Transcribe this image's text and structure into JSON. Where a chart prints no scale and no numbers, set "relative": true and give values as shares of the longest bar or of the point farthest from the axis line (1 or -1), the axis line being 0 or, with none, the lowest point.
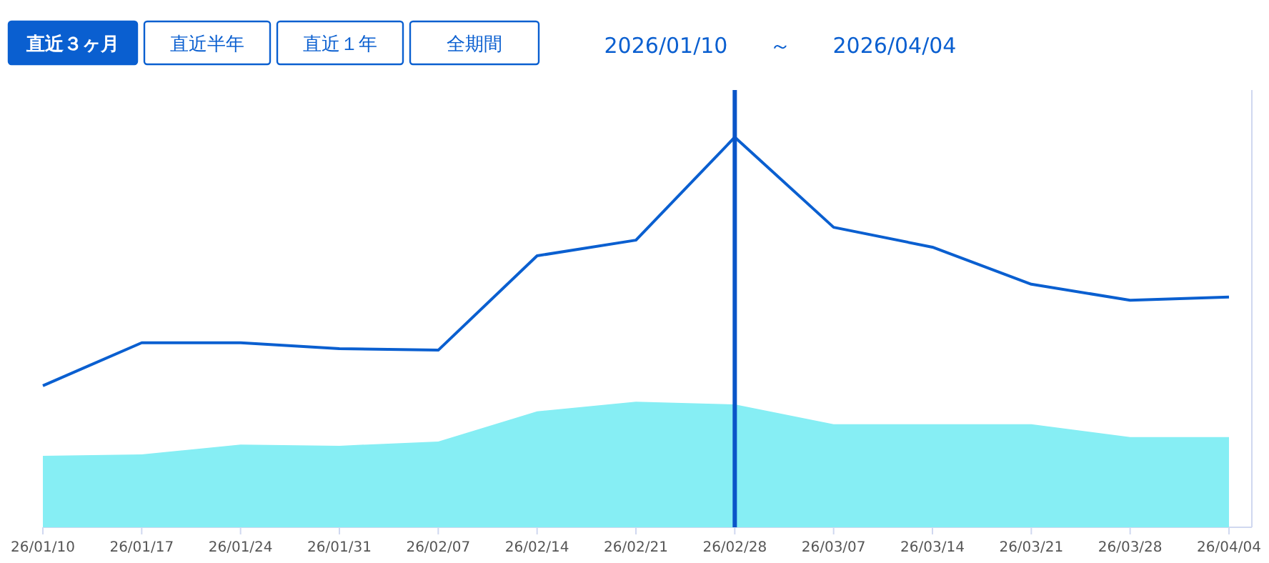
{
  "chart_data": {
    "type": "line",
    "relative": true,
    "categories": [
      "26/01/10",
      "26/01/17",
      "26/01/24",
      "26/01/31",
      "26/02/07",
      "26/02/14",
      "26/02/21",
      "26/02/28",
      "26/03/07",
      "26/03/14",
      "26/03/21",
      "26/03/28",
      "26/04/04"
    ],
    "series": [
      {
        "type": "area",
        "color": "#86eef4",
        "values": [
          0.183,
          0.187,
          0.212,
          0.209,
          0.22,
          0.297,
          0.322,
          0.315,
          0.264,
          0.264,
          0.264,
          0.231,
          0.231
        ]
      },
      {
        "color": "#0a5fd0",
        "values": [
          0.363,
          0.473,
          0.473,
          0.458,
          0.454,
          0.696,
          0.736,
          1,
          0.769,
          0.718,
          0.623,
          0.582,
          0.59
        ]
      }
    ],
    "ref_lines": [
      {
        "axis": "x",
        "value": "26/02/28",
        "color": "#0a55c8"
      }
    ],
    "annotations": [
      "直近３ヶ月",
      "直近半年",
      "直近１年",
      "全期間",
      "2026/01/10",
      "～",
      "2026/04/04"
    ]
  }
}
